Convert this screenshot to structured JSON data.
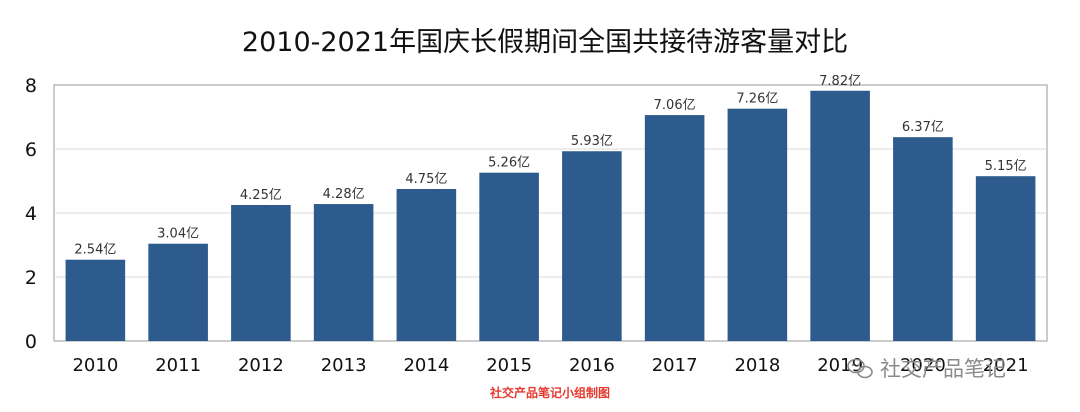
{
  "chart_data": {
    "type": "bar",
    "title": "2010-2021年国庆长假期间全国共接待游客量对比",
    "xlabel": "",
    "ylabel": "",
    "categories": [
      "2010",
      "2011",
      "2012",
      "2013",
      "2014",
      "2015",
      "2016",
      "2017",
      "2018",
      "2019",
      "2020",
      "2021"
    ],
    "values": [
      2.54,
      3.04,
      4.25,
      4.28,
      4.75,
      5.26,
      5.93,
      7.06,
      7.26,
      7.82,
      6.37,
      5.15
    ],
    "data_labels": [
      "2.54亿",
      "3.04亿",
      "4.25亿",
      "4.28亿",
      "4.75亿",
      "5.26亿",
      "5.93亿",
      "7.06亿",
      "7.26亿",
      "7.82亿",
      "6.37亿",
      "5.15亿"
    ],
    "ylim": [
      0,
      8
    ],
    "yticks": [
      0,
      2,
      4,
      6,
      8
    ],
    "grid": true,
    "legend": "none",
    "bar_color": "#2e5b8d",
    "grid_color": "#d9d9d9"
  },
  "footer": {
    "source": "社交产品笔记小组制图",
    "source_color": "#e8392e"
  },
  "watermark": {
    "text": "社交产品笔记",
    "icon": "wechat-icon"
  }
}
